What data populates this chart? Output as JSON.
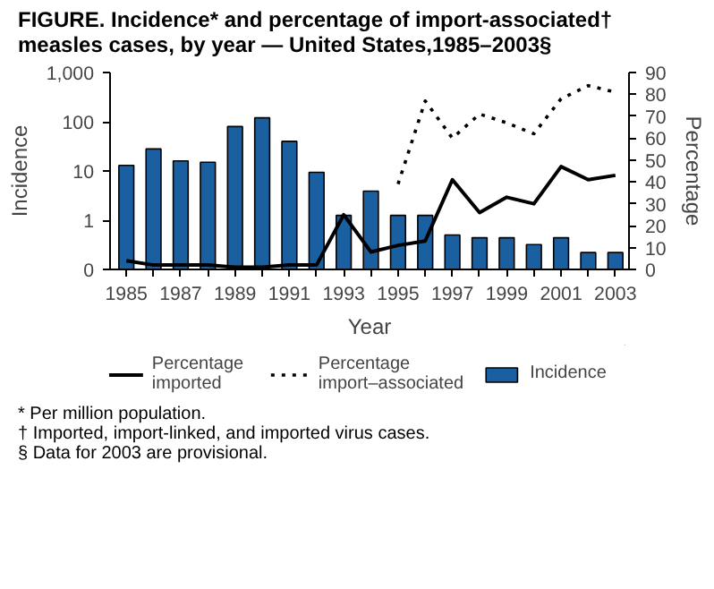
{
  "chart_data": {
    "type": "bar",
    "title": "FIGURE. Incidence* and percentage of import-associated† measles cases, by year — United States,1985–2003§",
    "xlabel": "Year",
    "ylabel": "Incidence",
    "y2label": "Percentage",
    "x": [
      1985,
      1986,
      1987,
      1988,
      1989,
      1990,
      1991,
      1992,
      1993,
      1994,
      1995,
      1996,
      1997,
      1998,
      1999,
      2000,
      2001,
      2002,
      2003
    ],
    "series": [
      {
        "name": "Percentage imported",
        "type": "line",
        "axis": "y2",
        "color": "#000000",
        "line_style": "solid",
        "values": [
          4,
          2,
          2,
          2,
          1,
          1,
          2,
          2,
          25,
          8,
          11,
          13,
          41,
          26,
          33,
          30,
          47,
          41,
          43
        ]
      },
      {
        "name": "Percentage import–associated",
        "type": "line",
        "axis": "y2",
        "color": "#000000",
        "line_style": "dotted",
        "values": [
          null,
          null,
          null,
          null,
          null,
          null,
          null,
          null,
          null,
          null,
          39,
          77,
          60,
          71,
          67,
          62,
          78,
          84,
          81
        ]
      },
      {
        "name": "Incidence",
        "color": "#1a5fa0",
        "values": [
          13,
          28,
          16,
          15,
          80,
          120,
          40,
          9.4,
          1.25,
          3.9,
          1.25,
          1.25,
          0.5,
          0.44,
          0.44,
          0.32,
          0.44,
          0.22,
          0.22
        ]
      }
    ],
    "log": "y",
    "xlim": [
      1984.4,
      2003.5
    ],
    "xticks": [
      1985,
      {
        "value": 1986,
        "label": null
      },
      1987,
      {
        "value": 1988,
        "label": null
      },
      1989,
      {
        "value": 1990,
        "label": null
      },
      1991,
      {
        "value": 1992,
        "label": null
      },
      1993,
      {
        "value": 1994,
        "label": null
      },
      1995,
      {
        "value": 1996,
        "label": null
      },
      1997,
      {
        "value": 1998,
        "label": null
      },
      1999,
      {
        "value": 2000,
        "label": null
      },
      2001,
      {
        "value": 2002,
        "label": null
      },
      2003
    ],
    "ylim": [
      0.1,
      1000
    ],
    "yticks": [
      {
        "value": 0.1,
        "label": "0"
      },
      1,
      10,
      100,
      {
        "value": 1000,
        "label": "1,000"
      }
    ],
    "y2lim": [
      0,
      90
    ],
    "y2ticks": [
      0,
      10,
      20,
      30,
      40,
      50,
      60,
      70,
      80,
      90
    ],
    "legend": "bottom",
    "annotations": [
      "* Per million population.",
      "† Imported, import-linked, and imported virus cases.",
      "§ Data for 2003 are provisional."
    ]
  }
}
